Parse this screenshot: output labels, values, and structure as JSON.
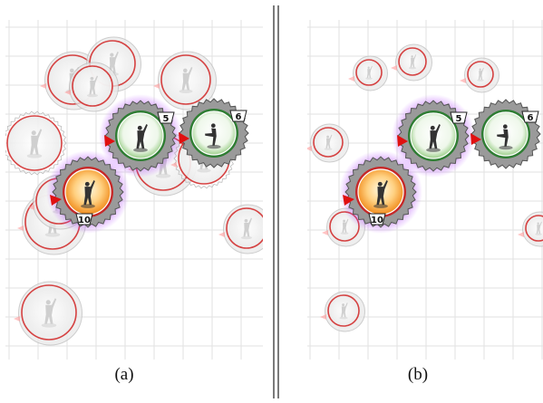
{
  "panels": [
    {
      "caption": "(a)",
      "tokens": [
        {
          "name": "player-10",
          "number": "10",
          "color": "#f08a1a",
          "ring": "#c62828",
          "highlight": true,
          "ghost": false
        },
        {
          "name": "player-5",
          "number": "5",
          "color": "#3aa33a",
          "ring": "#2e7d32",
          "highlight": true,
          "ghost": false
        },
        {
          "name": "player-6",
          "number": "6",
          "color": "#3aa33a",
          "ring": "#2e7d32",
          "highlight": false,
          "ghost": false
        }
      ]
    },
    {
      "caption": "(b)",
      "tokens": [
        {
          "name": "player-10",
          "number": "10",
          "color": "#f08a1a",
          "ring": "#c62828",
          "highlight": true,
          "ghost": false
        },
        {
          "name": "player-5",
          "number": "5",
          "color": "#3aa33a",
          "ring": "#2e7d32",
          "highlight": true,
          "ghost": false
        },
        {
          "name": "player-6",
          "number": "6",
          "color": "#3aa33a",
          "ring": "#2e7d32",
          "highlight": false,
          "ghost": false
        }
      ]
    }
  ],
  "colors": {
    "grid": "#e2e2e2",
    "ghost_ring": "#d32f2f",
    "ghost_fill": "#efefef",
    "glow": "#9b30ff",
    "arrow": "#e01010",
    "separator": "#222222"
  }
}
